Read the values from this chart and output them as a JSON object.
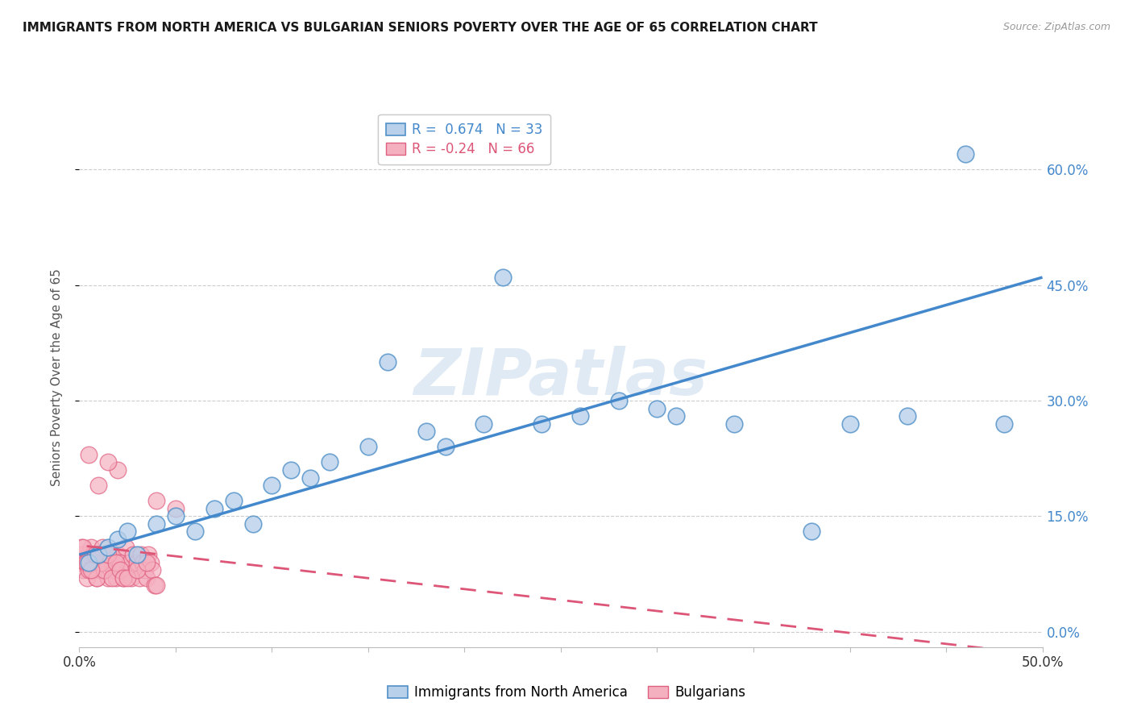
{
  "title": "IMMIGRANTS FROM NORTH AMERICA VS BULGARIAN SENIORS POVERTY OVER THE AGE OF 65 CORRELATION CHART",
  "source": "Source: ZipAtlas.com",
  "ylabel": "Seniors Poverty Over the Age of 65",
  "xlim": [
    0.0,
    0.5
  ],
  "ylim": [
    -0.02,
    0.68
  ],
  "yticks_right": [
    0.0,
    0.15,
    0.3,
    0.45,
    0.6
  ],
  "ytick_labels_right": [
    "0.0%",
    "15.0%",
    "30.0%",
    "45.0%",
    "60.0%"
  ],
  "blue_R": 0.674,
  "blue_N": 33,
  "pink_R": -0.24,
  "pink_N": 66,
  "blue_color": "#b8d0ea",
  "pink_color": "#f5b0c0",
  "blue_edge_color": "#5090c8",
  "pink_edge_color": "#e06080",
  "blue_line_color": "#4488cc",
  "pink_line_color": "#dd5577",
  "watermark": "ZIPatlas",
  "watermark_color": "#ccdded",
  "blue_scatter_x": [
    0.005,
    0.01,
    0.015,
    0.02,
    0.025,
    0.03,
    0.04,
    0.05,
    0.06,
    0.07,
    0.08,
    0.09,
    0.1,
    0.11,
    0.12,
    0.13,
    0.15,
    0.16,
    0.18,
    0.19,
    0.21,
    0.24,
    0.26,
    0.28,
    0.31,
    0.34,
    0.38,
    0.4,
    0.43,
    0.46,
    0.48,
    0.3,
    0.22
  ],
  "blue_scatter_y": [
    0.09,
    0.1,
    0.11,
    0.12,
    0.13,
    0.1,
    0.14,
    0.15,
    0.13,
    0.16,
    0.17,
    0.14,
    0.19,
    0.21,
    0.2,
    0.22,
    0.24,
    0.35,
    0.26,
    0.24,
    0.27,
    0.27,
    0.28,
    0.3,
    0.28,
    0.27,
    0.13,
    0.27,
    0.28,
    0.62,
    0.27,
    0.29,
    0.46
  ],
  "pink_scatter_x": [
    0.0,
    0.001,
    0.002,
    0.003,
    0.004,
    0.005,
    0.006,
    0.007,
    0.008,
    0.009,
    0.01,
    0.011,
    0.012,
    0.013,
    0.014,
    0.015,
    0.016,
    0.017,
    0.018,
    0.019,
    0.02,
    0.021,
    0.022,
    0.023,
    0.024,
    0.025,
    0.026,
    0.027,
    0.028,
    0.029,
    0.03,
    0.031,
    0.032,
    0.033,
    0.034,
    0.035,
    0.036,
    0.037,
    0.038,
    0.039,
    0.001,
    0.003,
    0.005,
    0.007,
    0.009,
    0.011,
    0.013,
    0.015,
    0.017,
    0.019,
    0.021,
    0.023,
    0.002,
    0.004,
    0.006,
    0.008,
    0.025,
    0.03,
    0.035,
    0.04,
    0.02,
    0.015,
    0.01,
    0.005,
    0.04,
    0.05
  ],
  "pink_scatter_y": [
    0.09,
    0.1,
    0.08,
    0.09,
    0.07,
    0.1,
    0.11,
    0.08,
    0.09,
    0.07,
    0.1,
    0.08,
    0.11,
    0.09,
    0.08,
    0.07,
    0.1,
    0.09,
    0.08,
    0.07,
    0.1,
    0.09,
    0.08,
    0.07,
    0.11,
    0.08,
    0.09,
    0.07,
    0.1,
    0.08,
    0.09,
    0.07,
    0.1,
    0.09,
    0.08,
    0.07,
    0.1,
    0.09,
    0.08,
    0.06,
    0.11,
    0.09,
    0.08,
    0.1,
    0.07,
    0.09,
    0.08,
    0.1,
    0.07,
    0.09,
    0.08,
    0.07,
    0.11,
    0.09,
    0.08,
    0.1,
    0.07,
    0.08,
    0.09,
    0.06,
    0.21,
    0.22,
    0.19,
    0.23,
    0.17,
    0.16
  ],
  "blue_trend_x": [
    0.0,
    0.5
  ],
  "blue_trend_y": [
    0.1,
    0.46
  ],
  "pink_trend_x": [
    -0.01,
    0.5
  ],
  "pink_trend_y": [
    0.115,
    -0.03
  ]
}
